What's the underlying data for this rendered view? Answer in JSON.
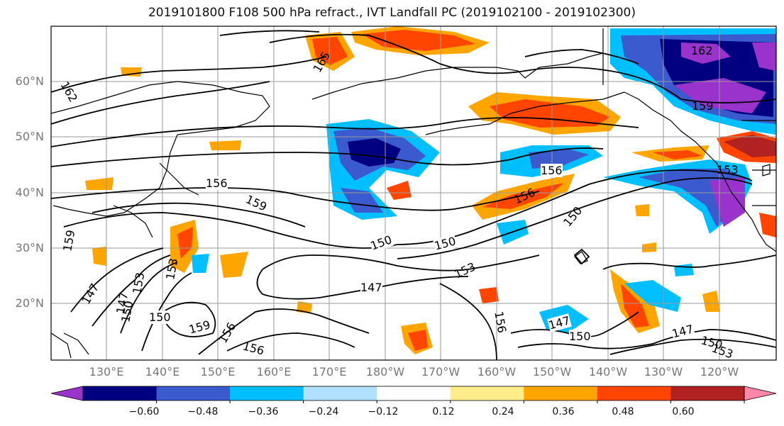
{
  "title": "2019101800 F108 500 hPa refract., IVT Landfall PC (2019102100 - 2019102300)",
  "map": {
    "lat_labels": [
      "60°N",
      "50°N",
      "40°N",
      "30°N",
      "20°N"
    ],
    "lon_labels": [
      "130°E",
      "140°E",
      "150°E",
      "160°E",
      "170°E",
      "180°W",
      "170°W",
      "160°W",
      "150°W",
      "140°W",
      "130°W",
      "120°W"
    ],
    "contour_labels": [
      "162",
      "165",
      "156",
      "159",
      "150",
      "153",
      "147",
      "156",
      "159",
      "150",
      "153",
      "156",
      "150",
      "147",
      "159",
      "156",
      "147",
      "150",
      "153",
      "150",
      "147",
      "156",
      "150",
      "156",
      "153",
      "159",
      "162",
      "147",
      "150",
      "153"
    ],
    "grid": true,
    "colors": {
      "land_outline": "#000000",
      "contour": "#000000",
      "grid": "#9a9a9a"
    }
  },
  "colorbar": {
    "ticks": [
      "−0.60",
      "−0.48",
      "−0.36",
      "−0.24",
      "−0.12",
      "0.12",
      "0.24",
      "0.36",
      "0.48",
      "0.60"
    ],
    "colors": [
      "#9933cc",
      "#000080",
      "#3a5acd",
      "#00bfff",
      "#b0e2ff",
      "#ffffff",
      "#ffec8b",
      "#ffa500",
      "#ff4500",
      "#b22222",
      "#ff88aa"
    ]
  }
}
